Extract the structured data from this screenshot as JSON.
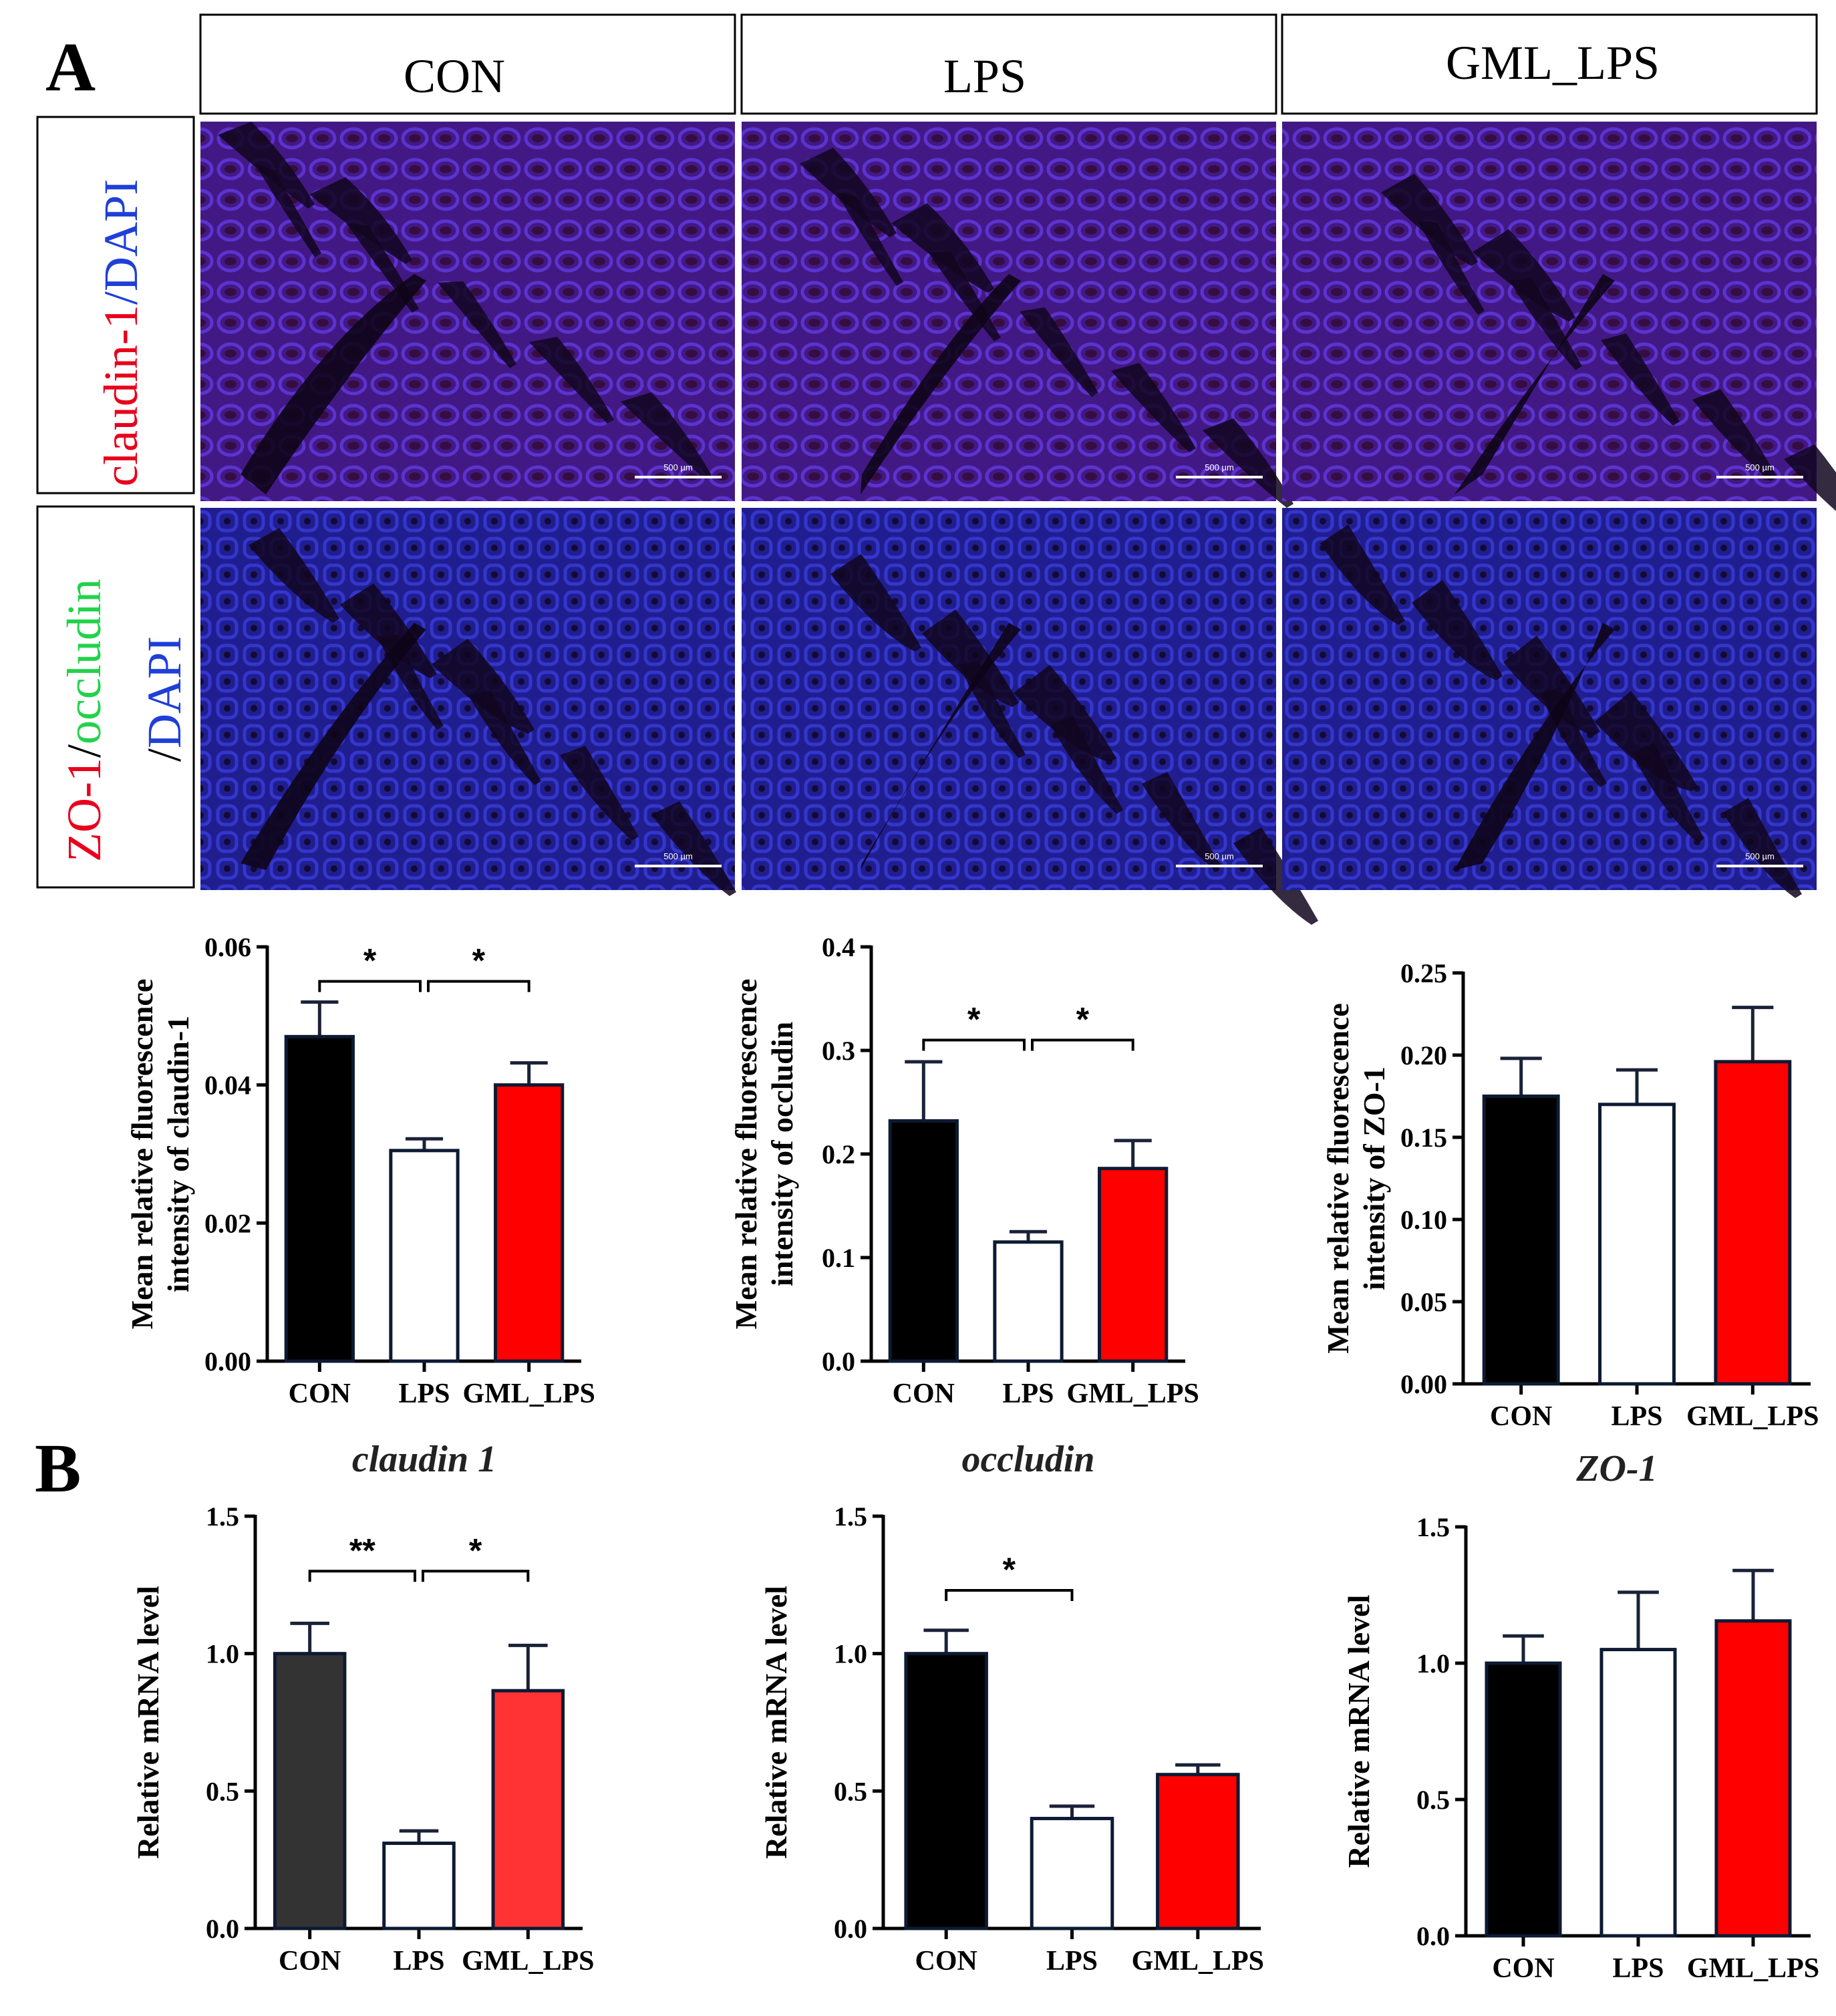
{
  "panel_labels": {
    "a": "A",
    "b": "B"
  },
  "column_headers": [
    "CON",
    "LPS",
    "GML_LPS"
  ],
  "row_labels": {
    "row1": {
      "part1": "claudin-1",
      "part2": "/DAPI",
      "color1": "#e8001c",
      "color2": "#1f3fd8"
    },
    "row2": {
      "part1": "ZO-1",
      "part2": "/",
      "part3": "occludin",
      "part4": "/",
      "part5": "DAPI",
      "color1": "#e8001c",
      "color2": "#000000",
      "color3": "#22d24a",
      "color5": "#1f3fd8"
    }
  },
  "scale_bar_label": "500 µm",
  "colors": {
    "CON": "#000000",
    "LPS": "#ffffff",
    "GML_LPS": "#ff0000",
    "CON_mrna1": "#333333",
    "GML_mrna1": "#ff3333",
    "tissue_bg": "#2a1458",
    "tissue_cell": "#3a2ad0"
  },
  "chart_data": [
    {
      "id": "a1",
      "type": "bar",
      "categories": [
        "CON",
        "LPS",
        "GML_LPS"
      ],
      "values": [
        0.047,
        0.0305,
        0.04
      ],
      "errors": [
        0.005,
        0.0017,
        0.0032
      ],
      "ylabel": "Mean relative fluorescence intensity of claudin-1",
      "ylabel_lines": [
        "Mean relative fluorescence",
        "intensity of claudin-1"
      ],
      "ylim": [
        0,
        0.06
      ],
      "ticks": [
        0,
        0.02,
        0.04,
        0.06
      ],
      "tick_labels": [
        "0.00",
        "0.02",
        "0.04",
        "0.06"
      ],
      "significance": [
        {
          "from": 0,
          "to": 1,
          "label": "*"
        },
        {
          "from": 1,
          "to": 2,
          "label": "*"
        }
      ],
      "xlabel": "claudin 1"
    },
    {
      "id": "a2",
      "type": "bar",
      "categories": [
        "CON",
        "LPS",
        "GML_LPS"
      ],
      "values": [
        0.232,
        0.115,
        0.186
      ],
      "errors": [
        0.057,
        0.01,
        0.027
      ],
      "ylabel": "Mean relative fluorescence intensity of occludin",
      "ylabel_lines": [
        "Mean relative fluorescence",
        "intensity of occludin"
      ],
      "ylim": [
        0,
        0.4
      ],
      "ticks": [
        0,
        0.1,
        0.2,
        0.3,
        0.4
      ],
      "tick_labels": [
        "0.0",
        "0.1",
        "0.2",
        "0.3",
        "0.4"
      ],
      "significance": [
        {
          "from": 0,
          "to": 1,
          "label": "*"
        },
        {
          "from": 1,
          "to": 2,
          "label": "*"
        }
      ],
      "xlabel": "occludin"
    },
    {
      "id": "a3",
      "type": "bar",
      "categories": [
        "CON",
        "LPS",
        "GML_LPS"
      ],
      "values": [
        0.175,
        0.17,
        0.196
      ],
      "errors": [
        0.023,
        0.021,
        0.033
      ],
      "ylabel": "Mean relative fluorescence intensity of ZO-1",
      "ylabel_lines": [
        "Mean relative fluorescence",
        "intensity of ZO-1"
      ],
      "ylim": [
        0,
        0.25
      ],
      "ticks": [
        0,
        0.05,
        0.1,
        0.15,
        0.2,
        0.25
      ],
      "tick_labels": [
        "0.00",
        "0.05",
        "0.10",
        "0.15",
        "0.20",
        "0.25"
      ],
      "significance": [],
      "xlabel": "ZO-1"
    },
    {
      "id": "b1",
      "type": "bar",
      "categories": [
        "CON",
        "LPS",
        "GML_LPS"
      ],
      "values": [
        1.0,
        0.31,
        0.865
      ],
      "errors": [
        0.11,
        0.045,
        0.165
      ],
      "ylabel": "Relative mRNA level",
      "ylabel_lines": [
        "Relative mRNA level"
      ],
      "ylim": [
        0,
        1.5
      ],
      "ticks": [
        0,
        0.5,
        1.0,
        1.5
      ],
      "tick_labels": [
        "0.0",
        "0.5",
        "1.0",
        "1.5"
      ],
      "significance": [
        {
          "from": 0,
          "to": 1,
          "label": "**"
        },
        {
          "from": 1,
          "to": 2,
          "label": "*"
        }
      ]
    },
    {
      "id": "b2",
      "type": "bar",
      "categories": [
        "CON",
        "LPS",
        "GML_LPS"
      ],
      "values": [
        1.0,
        0.4,
        0.56
      ],
      "errors": [
        0.085,
        0.045,
        0.035
      ],
      "ylabel": "Relative mRNA level",
      "ylabel_lines": [
        "Relative mRNA level"
      ],
      "ylim": [
        0,
        1.5
      ],
      "ticks": [
        0,
        0.5,
        1.0,
        1.5
      ],
      "tick_labels": [
        "0.0",
        "0.5",
        "1.0",
        "1.5"
      ],
      "significance": [
        {
          "from": 0,
          "to": 1,
          "label": "*"
        }
      ]
    },
    {
      "id": "b3",
      "type": "bar",
      "categories": [
        "CON",
        "LPS",
        "GML_LPS"
      ],
      "values": [
        1.0,
        1.05,
        1.155
      ],
      "errors": [
        0.1,
        0.21,
        0.185
      ],
      "ylabel": "Relative mRNA level",
      "ylabel_lines": [
        "Relative mRNA level"
      ],
      "ylim": [
        0,
        1.5
      ],
      "ticks": [
        0,
        0.5,
        1.0,
        1.5
      ],
      "tick_labels": [
        "0.0",
        "0.5",
        "1.0",
        "1.5"
      ],
      "significance": []
    }
  ]
}
